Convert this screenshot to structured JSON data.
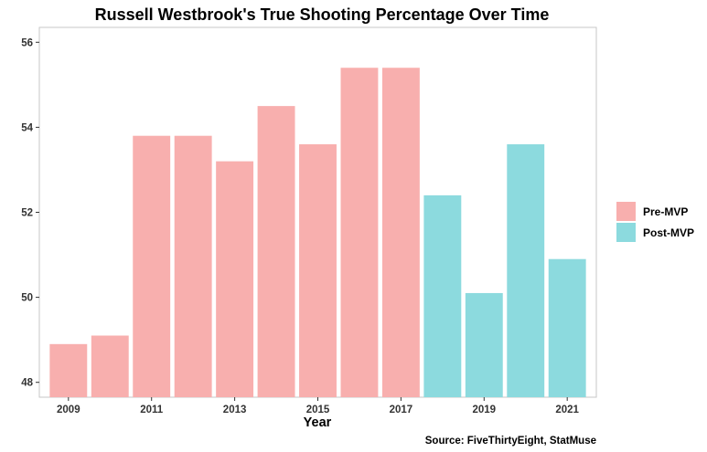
{
  "chart_data": {
    "type": "bar",
    "title": "Russell Westbrook's True Shooting Percentage Over Time",
    "xlabel": "Year",
    "ylabel": "",
    "caption": "Source: FiveThirtyEight, StatMuse",
    "x": [
      2009,
      2010,
      2011,
      2012,
      2013,
      2014,
      2015,
      2016,
      2017,
      2018,
      2019,
      2020,
      2021
    ],
    "values": [
      48.9,
      49.1,
      53.8,
      53.8,
      53.2,
      54.5,
      53.6,
      55.4,
      55.4,
      52.4,
      50.1,
      53.6,
      50.9
    ],
    "groups": [
      "Pre-MVP",
      "Pre-MVP",
      "Pre-MVP",
      "Pre-MVP",
      "Pre-MVP",
      "Pre-MVP",
      "Pre-MVP",
      "Pre-MVP",
      "Pre-MVP",
      "Post-MVP",
      "Post-MVP",
      "Post-MVP",
      "Post-MVP"
    ],
    "legend": {
      "position": "right",
      "entries": [
        {
          "name": "Pre-MVP",
          "color": "#F8AFAE"
        },
        {
          "name": "Post-MVP",
          "color": "#8CDADE"
        }
      ]
    },
    "x_ticks": [
      "2009",
      "2011",
      "2013",
      "2015",
      "2017",
      "2019",
      "2021"
    ],
    "y_ticks": [
      "48",
      "50",
      "52",
      "54",
      "56"
    ],
    "xlim": [
      2008.3,
      2021.7
    ],
    "ylim": [
      47.65,
      56.35
    ],
    "grid": false
  }
}
